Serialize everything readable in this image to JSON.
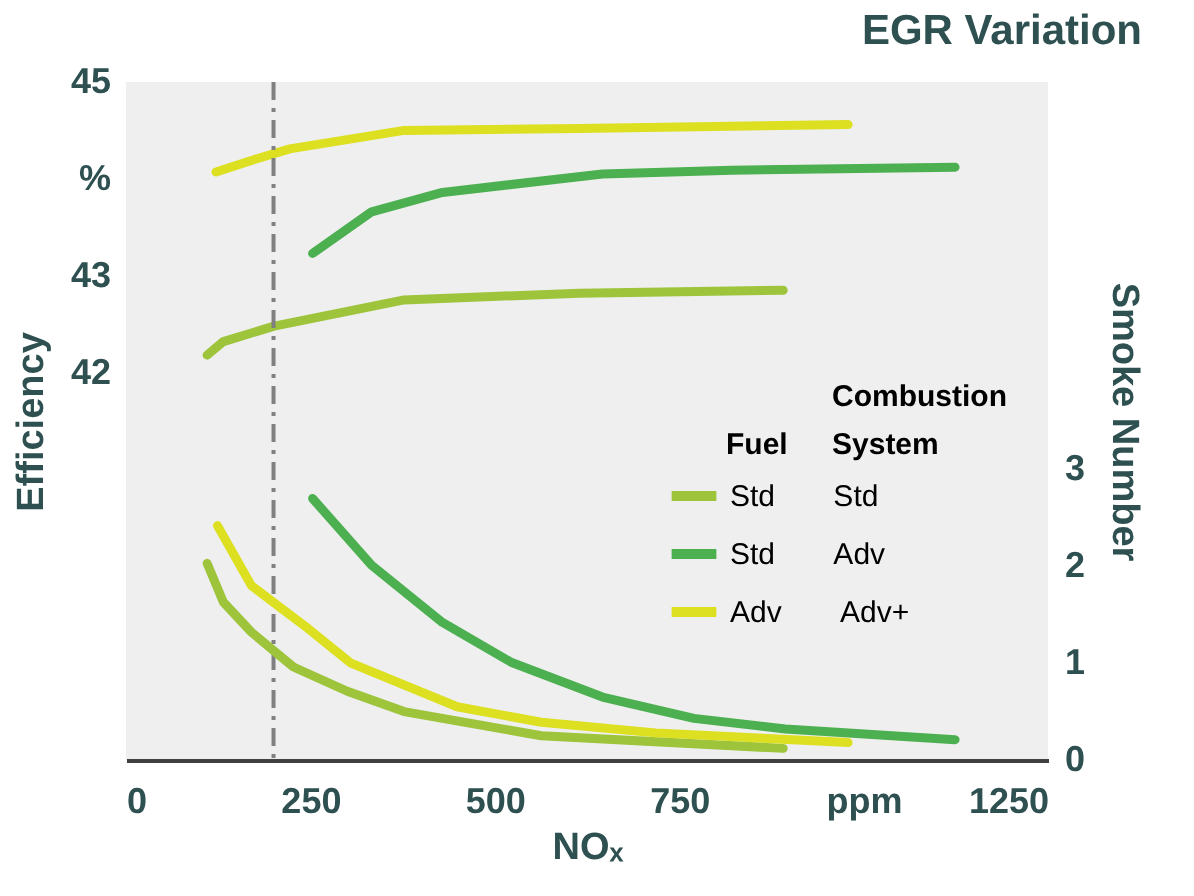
{
  "chart_data": {
    "type": "line",
    "title": "EGR Variation",
    "xlabel": "NOₓ",
    "ylabel": "Efficiency",
    "y2label": "Smoke Number",
    "legend_title": "Fuel Combustion System",
    "xlim": [
      0,
      1250
    ],
    "xticks": [
      0,
      250,
      500,
      750,
      {
        "value": 1000,
        "label": "ppm"
      },
      1250
    ],
    "ylim": [
      38,
      45
    ],
    "yticks": [
      42,
      43,
      {
        "value": 44,
        "label": "%"
      },
      45
    ],
    "y2lim": [
      0,
      7
    ],
    "y2ticks": [
      0,
      1,
      2,
      3
    ],
    "grid": false,
    "legend": "right",
    "marker": "none",
    "line_style": "solid",
    "ref_lines": [
      {
        "axis": "x",
        "value": 200,
        "color": "#808080",
        "line_style": "dashdot"
      }
    ],
    "series": [
      {
        "color": "#9dc43a",
        "x": [
          110,
          132,
          201,
          377,
          614,
          891
        ],
        "values": [
          42.18,
          42.32,
          42.48,
          42.75,
          42.82,
          42.85
        ]
      },
      {
        "color": "#4cb050",
        "x": [
          253,
          333,
          429,
          646,
          821,
          1124
        ],
        "values": [
          43.23,
          43.66,
          43.86,
          44.05,
          44.09,
          44.12
        ]
      },
      {
        "color": "#dce021",
        "x": [
          122,
          170,
          222,
          377,
          614,
          979
        ],
        "values": [
          44.07,
          44.19,
          44.31,
          44.5,
          44.52,
          44.56
        ]
      },
      {
        "name": "Std Std",
        "color": "#9dc43a",
        "axis": "y2",
        "x": [
          110,
          132,
          170,
          227,
          300,
          377,
          563,
          891
        ],
        "values": [
          2.03,
          1.63,
          1.32,
          0.96,
          0.71,
          0.5,
          0.25,
          0.12
        ]
      },
      {
        "name": "Std Adv",
        "color": "#4cb050",
        "axis": "y2",
        "x": [
          253,
          333,
          429,
          522,
          646,
          770,
          894,
          1124
        ],
        "values": [
          2.7,
          2.01,
          1.42,
          1.01,
          0.65,
          0.43,
          0.32,
          0.21
        ]
      },
      {
        "name": "Adv Adv+",
        "color": "#dce021",
        "axis": "y2",
        "x": [
          124,
          170,
          243,
          305,
          449,
          563,
          718,
          979
        ],
        "values": [
          2.42,
          1.8,
          1.38,
          1.0,
          0.55,
          0.39,
          0.28,
          0.18
        ]
      }
    ]
  }
}
